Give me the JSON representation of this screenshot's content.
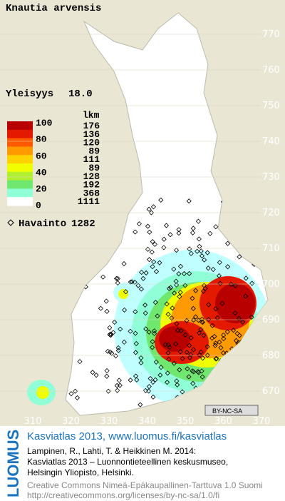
{
  "title": "Knautia arvensis",
  "frequency": {
    "label": "Yleisyys",
    "value": "18.0"
  },
  "legend": {
    "header": "lkm",
    "levels": [
      "100",
      "80",
      "60",
      "40",
      "20",
      "0"
    ],
    "counts": [
      "176",
      "136",
      "120",
      "89",
      "111",
      "89",
      "128",
      "192",
      "368",
      "1111"
    ],
    "colors": [
      "#b80000",
      "#e41a00",
      "#ff5a00",
      "#ff9a00",
      "#ffd200",
      "#f0ff00",
      "#b0f030",
      "#70e870",
      "#90ffd8",
      "#ffffff"
    ]
  },
  "observations": {
    "label": "Havainto",
    "value": "1282"
  },
  "y_labels": [
    "770",
    "760",
    "750",
    "740",
    "730",
    "720",
    "710",
    "700",
    "690",
    "680",
    "670"
  ],
  "x_labels": [
    "310",
    "320",
    "330",
    "340",
    "350",
    "360",
    "370"
  ],
  "badge": "BY-NC-SA",
  "footer": {
    "brand": "LUOMUS",
    "link": "Kasviatlas 2013, www.luomus.fi/kasviatlas",
    "citation": [
      "Lampinen, R., Lahti, T. & Heikkinen M. 2014:",
      "Kasviatlas 2013 – Luonnontieteellinen keskusmuseo,",
      "Helsingin Yliopisto, Helsinki."
    ],
    "license": [
      "Creative Commons Nimeä-Epäkaupallinen-Tarttuva 1.0 Suomi",
      "http://creativecommons.org/licenses/by-nc-sa/1.0/fi"
    ]
  }
}
